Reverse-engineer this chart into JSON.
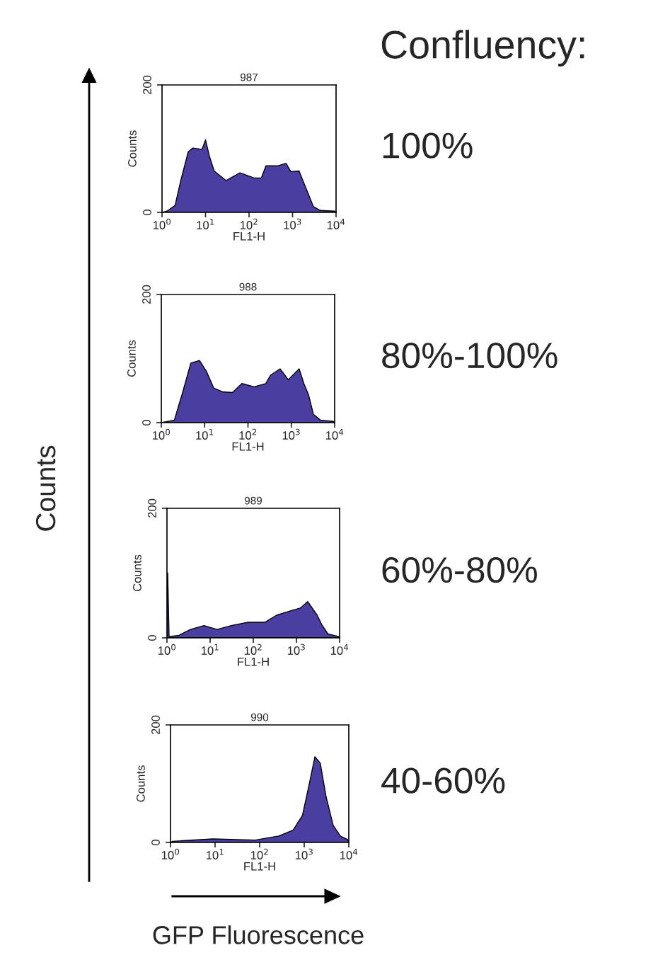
{
  "chart_data": [
    {
      "type": "area",
      "title": "987",
      "xlabel": "FL1-H",
      "ylabel": "Counts",
      "log": "x",
      "xlim": [
        1,
        10000
      ],
      "ylim": [
        0,
        200
      ],
      "xticks": [
        {
          "value": 1,
          "label": "10$^{0}$"
        },
        {
          "value": 10,
          "label": "10$^{1}$"
        },
        {
          "value": 100,
          "label": "10$^{2}$"
        },
        {
          "value": 1000,
          "label": "10$^{3}$"
        },
        {
          "value": 10000,
          "label": "10$^{4}$"
        }
      ],
      "yticks": [
        0,
        200
      ],
      "annotations": [
        "100%"
      ],
      "series": [
        {
          "color": "#4a3fa0",
          "x": [
            1,
            1.3,
            2.0,
            2.7,
            4.0,
            5.1,
            8.3,
            10,
            12.3,
            15.8,
            29.5,
            61.7,
            132,
            191,
            245,
            457,
            708,
            912,
            1413,
            2089,
            3020,
            4365,
            9333,
            10000
          ],
          "values": [
            0,
            2,
            11,
            50,
            95,
            101,
            99,
            114,
            88,
            65,
            50,
            62,
            54,
            54,
            73,
            73,
            77,
            64,
            65,
            36,
            9,
            3,
            2,
            0
          ]
        }
      ]
    },
    {
      "type": "area",
      "title": "988",
      "xlabel": "FL1-H",
      "ylabel": "Counts",
      "log": "x",
      "xlim": [
        1,
        10000
      ],
      "ylim": [
        0,
        200
      ],
      "xticks": [
        {
          "value": 1,
          "label": "10$^{0}$"
        },
        {
          "value": 10,
          "label": "10$^{1}$"
        },
        {
          "value": 100,
          "label": "10$^{2}$"
        },
        {
          "value": 1000,
          "label": "10$^{3}$"
        },
        {
          "value": 10000,
          "label": "10$^{4}$"
        }
      ],
      "yticks": [
        0,
        200
      ],
      "annotations": [
        "80%-100%"
      ],
      "series": [
        {
          "color": "#4a3fa0",
          "x": [
            1,
            2.0,
            3.1,
            4.8,
            7.6,
            11,
            16.2,
            26.3,
            43.7,
            72.4,
            138,
            257,
            331,
            550,
            851,
            1514,
            1950,
            2512,
            3236,
            4677,
            9333,
            10000
          ],
          "values": [
            0,
            4,
            47,
            93,
            97,
            80,
            54,
            48,
            47,
            61,
            56,
            61,
            74,
            84,
            67,
            84,
            61,
            43,
            13,
            4,
            2,
            0
          ]
        }
      ]
    },
    {
      "type": "area",
      "title": "989",
      "xlabel": "FL1-H",
      "ylabel": "Counts",
      "log": "x",
      "xlim": [
        1,
        10000
      ],
      "ylim": [
        0,
        200
      ],
      "xticks": [
        {
          "value": 1,
          "label": "10$^{0}$"
        },
        {
          "value": 10,
          "label": "10$^{1}$"
        },
        {
          "value": 100,
          "label": "10$^{2}$"
        },
        {
          "value": 1000,
          "label": "10$^{3}$"
        },
        {
          "value": 10000,
          "label": "10$^{4}$"
        }
      ],
      "yticks": [
        0,
        200
      ],
      "annotations": [
        "60%-80%"
      ],
      "series": [
        {
          "color": "#4a3fa0",
          "x": [
            1,
            1.04,
            1.12,
            1.9,
            3.5,
            7.2,
            14.5,
            30.9,
            75.9,
            186,
            347,
            851,
            1230,
            1820,
            3020,
            3890,
            5370,
            9550,
            10000
          ],
          "values": [
            100,
            100,
            2,
            4,
            13,
            19,
            13,
            19,
            24,
            24,
            35,
            43,
            46,
            56,
            35,
            20,
            6,
            2,
            0
          ]
        }
      ]
    },
    {
      "type": "area",
      "title": "990",
      "xlabel": "FL1-H",
      "ylabel": "Counts",
      "log": "x",
      "xlim": [
        1,
        10000
      ],
      "ylim": [
        0,
        200
      ],
      "xticks": [
        {
          "value": 1,
          "label": "10$^{0}$"
        },
        {
          "value": 10,
          "label": "10$^{1}$"
        },
        {
          "value": 100,
          "label": "10$^{2}$"
        },
        {
          "value": 1000,
          "label": "10$^{3}$"
        },
        {
          "value": 10000,
          "label": "10$^{4}$"
        }
      ],
      "yticks": [
        0,
        200
      ],
      "annotations": [
        "40-60%"
      ],
      "series": [
        {
          "color": "#4a3fa0",
          "x": [
            1,
            1.12,
            8.9,
            79.4,
            269,
            562,
            912,
            1318,
            1738,
            2291,
            3090,
            4467,
            6457,
            9333,
            10000
          ],
          "values": [
            0,
            2,
            6,
            4,
            11,
            21,
            46,
            102,
            146,
            135,
            78,
            29,
            11,
            5,
            0
          ]
        }
      ]
    },
    {
      "type": "other",
      "annotations": [
        "Confluency:",
        "Counts",
        "GFP Fluorescence"
      ]
    }
  ]
}
